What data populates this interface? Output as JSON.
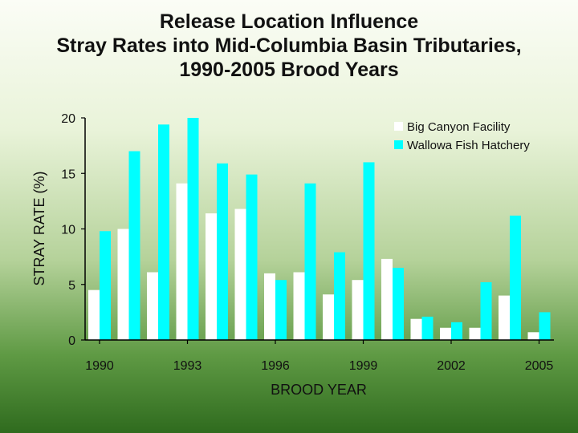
{
  "chart_data": {
    "type": "bar",
    "title": [
      "Release Location Influence",
      "Stray Rates into Mid-Columbia Basin Tributaries,",
      "1990-2005 Brood Years"
    ],
    "xlabel": "BROOD YEAR",
    "ylabel": "STRAY RATE (%)",
    "ylim": [
      0,
      20
    ],
    "yticks": [
      "0",
      "5",
      "10",
      "15",
      "20"
    ],
    "categories": [
      "1990",
      "1991",
      "1992",
      "1993",
      "1994",
      "1995",
      "1996",
      "1997",
      "1998",
      "1999",
      "2000",
      "2001",
      "2002",
      "2003",
      "2004",
      "2005"
    ],
    "xtick_labels": [
      "1990",
      "1993",
      "1996",
      "1999",
      "2002",
      "2005"
    ],
    "legend_position": "top-right",
    "grid": false,
    "series": [
      {
        "name": "Big Canyon Facility",
        "color": "#ffffff",
        "values": [
          4.5,
          10.0,
          6.1,
          14.1,
          11.4,
          11.8,
          6.0,
          6.1,
          4.1,
          5.4,
          7.3,
          1.9,
          1.1,
          1.1,
          4.0,
          0.7
        ]
      },
      {
        "name": "Wallowa Fish Hatchery",
        "color": "#00ffff",
        "values": [
          9.8,
          17.0,
          19.4,
          20.0,
          15.9,
          14.9,
          5.4,
          14.1,
          7.9,
          16.0,
          6.5,
          2.1,
          1.6,
          5.2,
          11.2,
          2.5
        ]
      }
    ]
  }
}
